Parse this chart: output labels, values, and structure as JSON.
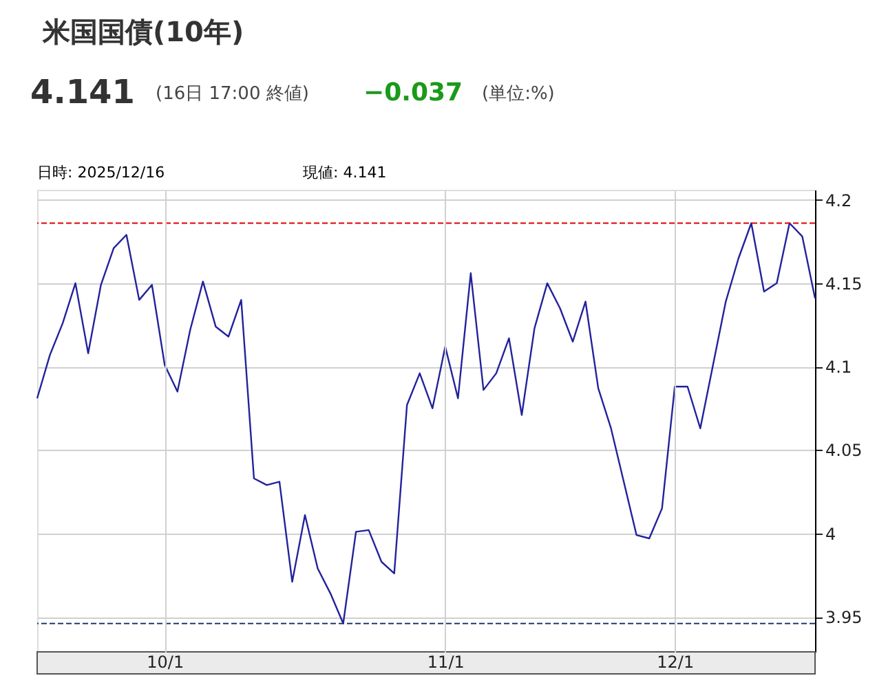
{
  "chart_data": {
    "type": "line",
    "title": "米国国債(10年)",
    "annotations": [
      "4.141",
      "(16日 17:00 終値)",
      "−0.037",
      "(単位:%)",
      "日時: 2025/12/16",
      "現値: 4.141"
    ],
    "categories": [
      null,
      null,
      null,
      null,
      null,
      null,
      null,
      null,
      null,
      null,
      "10/1",
      null,
      null,
      null,
      null,
      null,
      null,
      null,
      null,
      null,
      null,
      null,
      null,
      null,
      null,
      null,
      null,
      null,
      null,
      null,
      null,
      null,
      "11/1",
      null,
      null,
      null,
      null,
      null,
      null,
      null,
      null,
      null,
      null,
      null,
      null,
      null,
      null,
      null,
      null,
      null,
      "12/1",
      null,
      null,
      null,
      null,
      null,
      null,
      null,
      null,
      null,
      null,
      null
    ],
    "series": [
      {
        "color": "#22229c",
        "values": [
          4.081,
          4.107,
          4.126,
          4.15,
          4.108,
          4.149,
          4.171,
          4.179,
          4.14,
          4.149,
          4.101,
          4.085,
          4.122,
          4.151,
          4.124,
          4.118,
          4.14,
          4.033,
          4.029,
          4.031,
          3.971,
          4.011,
          3.979,
          3.964,
          3.946,
          4.001,
          4.002,
          3.983,
          3.976,
          4.077,
          4.096,
          4.075,
          4.112,
          4.081,
          4.156,
          4.086,
          4.096,
          4.117,
          4.071,
          4.123,
          4.15,
          4.135,
          4.115,
          4.139,
          4.087,
          4.063,
          4.031,
          3.999,
          3.997,
          4.015,
          4.088,
          4.088,
          4.063,
          4.101,
          4.139,
          4.165,
          4.186,
          4.145,
          4.15,
          4.186,
          4.178,
          4.141
        ]
      }
    ],
    "ylim": [
      3.929,
      4.206
    ],
    "yticks": [
      3.95,
      4,
      4.05,
      4.1,
      4.15,
      4.2
    ],
    "ref_lines": [
      {
        "axis": "y",
        "value": 4.186,
        "color": "#e00000",
        "line_style": "dashed"
      },
      {
        "axis": "y",
        "value": 3.946,
        "color": "#1f3a6e",
        "line_style": "dashed"
      }
    ],
    "grid": true,
    "marker": "none",
    "line_style": "solid"
  }
}
